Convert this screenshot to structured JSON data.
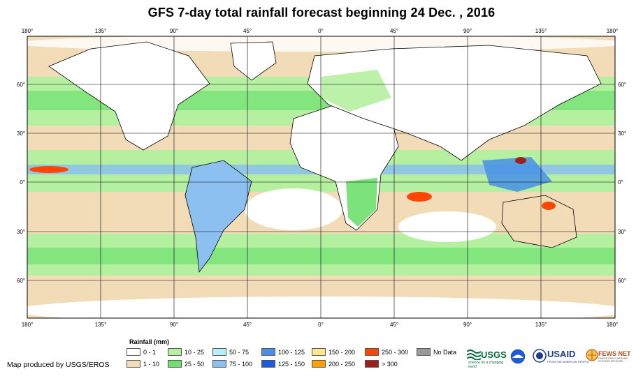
{
  "title": "GFS 7-day total rainfall forecast beginning 24 Dec. , 2016",
  "map": {
    "lon_ticks": [
      "180°",
      "135°",
      "90°",
      "45°",
      "0°",
      "45°",
      "90°",
      "135°",
      "180°"
    ],
    "lat_ticks": [
      "60°",
      "30°",
      "0°",
      "30°",
      "60°"
    ],
    "extent": {
      "lon": [
        -180,
        180
      ],
      "lat": [
        -80,
        90
      ]
    }
  },
  "legend": {
    "title": "Rainfall (mm)",
    "items": [
      {
        "label": "0 - 1",
        "color": "#ffffff"
      },
      {
        "label": "1 - 10",
        "color": "#f2dcb8"
      },
      {
        "label": "10 - 25",
        "color": "#b4f0a0"
      },
      {
        "label": "25 - 50",
        "color": "#6ee06e"
      },
      {
        "label": "50 - 75",
        "color": "#b4f0f8"
      },
      {
        "label": "75 - 100",
        "color": "#8cc0f0"
      },
      {
        "label": "100 - 125",
        "color": "#4690e6"
      },
      {
        "label": "125 - 150",
        "color": "#1e5adc"
      },
      {
        "label": "150 - 200",
        "color": "#ffe68c"
      },
      {
        "label": "200 - 250",
        "color": "#ffa000"
      },
      {
        "label": "250 - 300",
        "color": "#ff4600"
      },
      {
        "label": "> 300",
        "color": "#a01e1e"
      },
      {
        "label": "No Data",
        "color": "#999999"
      }
    ]
  },
  "credit": "Map produced by USGS/EROS",
  "logos": {
    "usgs": "USGS",
    "usgs_tagline": "science for a changing world",
    "usaid": "USAID",
    "usaid_tagline": "FROM THE AMERICAN PEOPLE",
    "fews": "FEWS NET",
    "fews_tagline": "FAMINE EARLY WARNING SYSTEMS NETWORK"
  }
}
